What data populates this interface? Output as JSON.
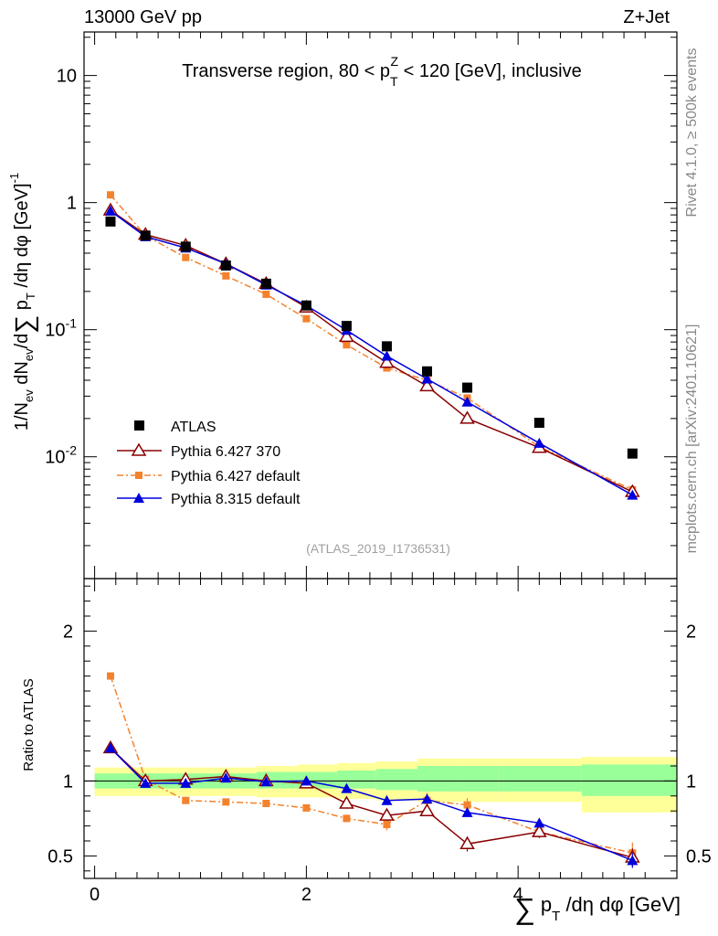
{
  "header": {
    "energy_label": "13000 GeV pp",
    "process_label": "Z+Jet"
  },
  "side_labels": {
    "rivet": "Rivet 4.1.0, ≥ 500k events",
    "mcplots": "mcplots.cern.ch [arXiv:2401.10621]"
  },
  "analysis_id": "(ATLAS_2019_I1736531)",
  "colors": {
    "atlas": "#000000",
    "pythia6_370": "#8b0000",
    "pythia6_default": "#f4822d",
    "pythia8_default": "#0000dd",
    "band_inner": "#99ff99",
    "band_outer": "#ffff99"
  },
  "chart_data": [
    {
      "type": "line",
      "title": "Transverse region, 80 < p_T^Z < 120 [GeV], inclusive",
      "ylabel": "1/N_ev dN_ev/d∑p_T/dη dφ [GeV]^-1",
      "yscale": "log",
      "xlim": [
        -0.1,
        5.5
      ],
      "ylim": [
        0.0011,
        22
      ],
      "y_ticks": [
        {
          "value": 10,
          "label": "10"
        },
        {
          "value": 1,
          "label": "1"
        },
        {
          "value": 0.1,
          "label": "10^-1"
        },
        {
          "value": 0.01,
          "label": "10^-2"
        }
      ],
      "legend": [
        "ATLAS",
        "Pythia 6.427 370",
        "Pythia 6.427 default",
        "Pythia 8.315 default"
      ],
      "legend_position": "lower-left",
      "x": [
        0.15,
        0.48,
        0.86,
        1.24,
        1.62,
        2.0,
        2.38,
        2.76,
        3.14,
        3.52,
        4.2,
        5.08
      ],
      "series": [
        {
          "name": "ATLAS",
          "values": [
            0.71,
            0.55,
            0.45,
            0.32,
            0.23,
            0.155,
            0.107,
            0.074,
            0.047,
            0.035,
            0.0185,
            0.0106
          ]
        },
        {
          "name": "Pythia 6.427 370",
          "values": [
            0.87,
            0.56,
            0.46,
            0.33,
            0.23,
            0.15,
            0.088,
            0.055,
            0.036,
            0.02,
            0.0118,
            0.0053
          ]
        },
        {
          "name": "Pythia 6.427 default",
          "values": [
            1.15,
            0.55,
            0.37,
            0.265,
            0.19,
            0.122,
            0.076,
            0.05,
            0.04,
            0.029,
            0.012,
            0.0055
          ]
        },
        {
          "name": "Pythia 8.315 default",
          "values": [
            0.86,
            0.54,
            0.44,
            0.33,
            0.225,
            0.155,
            0.099,
            0.062,
            0.041,
            0.027,
            0.0128,
            0.005
          ]
        }
      ]
    },
    {
      "type": "line",
      "ylabel": "Ratio to ATLAS",
      "xlabel": "∑p_T/dη dφ [GeV]",
      "xlim": [
        -0.1,
        5.5
      ],
      "ylim": [
        0.35,
        2.35
      ],
      "x_ticks": [
        0,
        2,
        4
      ],
      "y_ticks": [
        0.5,
        1,
        2
      ],
      "reference_line": 1,
      "band_edges": [
        0,
        0.4,
        0.77,
        1.15,
        1.53,
        1.92,
        2.29,
        2.66,
        3.05,
        3.43,
        3.81,
        4.6,
        5.5
      ],
      "band_inner_lo": [
        0.95,
        0.95,
        0.95,
        0.95,
        0.95,
        0.95,
        0.95,
        0.94,
        0.93,
        0.93,
        0.93,
        0.9
      ],
      "band_inner_hi": [
        1.05,
        1.05,
        1.05,
        1.05,
        1.06,
        1.06,
        1.07,
        1.08,
        1.1,
        1.1,
        1.1,
        1.11
      ],
      "band_outer_lo": [
        0.9,
        0.9,
        0.9,
        0.9,
        0.89,
        0.89,
        0.88,
        0.87,
        0.86,
        0.86,
        0.86,
        0.79
      ],
      "band_outer_hi": [
        1.09,
        1.09,
        1.09,
        1.09,
        1.1,
        1.11,
        1.12,
        1.13,
        1.15,
        1.15,
        1.15,
        1.16
      ],
      "x": [
        0.15,
        0.48,
        0.86,
        1.24,
        1.62,
        2.0,
        2.38,
        2.76,
        3.14,
        3.52,
        4.2,
        5.08
      ],
      "series": [
        {
          "name": "Pythia 6.427 370",
          "values": [
            1.22,
            1.0,
            1.01,
            1.03,
            1.0,
            0.985,
            0.85,
            0.77,
            0.8,
            0.58,
            0.66,
            0.49
          ],
          "errors": [
            0.01,
            0.01,
            0.01,
            0.01,
            0.01,
            0.015,
            0.02,
            0.025,
            0.035,
            0.05,
            0.04,
            0.06
          ]
        },
        {
          "name": "Pythia 6.427 default",
          "values": [
            1.7,
            1.01,
            0.87,
            0.86,
            0.85,
            0.82,
            0.75,
            0.71,
            0.87,
            0.84,
            0.66,
            0.52
          ],
          "errors": [
            0.01,
            0.01,
            0.01,
            0.01,
            0.015,
            0.02,
            0.025,
            0.04,
            0.05,
            0.045,
            0.04,
            0.07
          ]
        },
        {
          "name": "Pythia 8.315 default",
          "values": [
            1.22,
            0.985,
            0.985,
            1.02,
            0.995,
            1.0,
            0.95,
            0.87,
            0.88,
            0.79,
            0.72,
            0.47
          ],
          "errors": [
            0.01,
            0.01,
            0.01,
            0.01,
            0.01,
            0.015,
            0.015,
            0.02,
            0.02,
            0.025,
            0.025,
            0.05
          ]
        }
      ]
    }
  ]
}
